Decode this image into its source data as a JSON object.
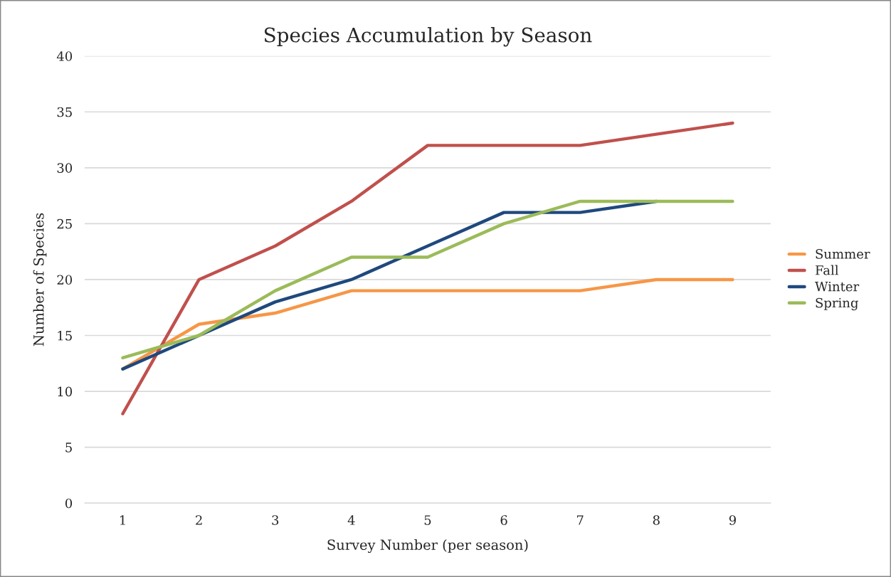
{
  "chart_data": {
    "type": "line",
    "title": "Species Accumulation by Season",
    "xlabel": "Survey Number (per season)",
    "ylabel": "Number of Species",
    "categories": [
      "1",
      "2",
      "3",
      "4",
      "5",
      "6",
      "7",
      "8",
      "9"
    ],
    "series": [
      {
        "name": "Summer",
        "color": "#f79646",
        "values": [
          12,
          16,
          17,
          19,
          19,
          19,
          19,
          20,
          20
        ]
      },
      {
        "name": "Fall",
        "color": "#c0504d",
        "values": [
          8,
          20,
          23,
          27,
          32,
          32,
          32,
          33,
          34
        ]
      },
      {
        "name": "Winter",
        "color": "#1f497d",
        "values": [
          12,
          15,
          18,
          20,
          23,
          26,
          26,
          27,
          null
        ]
      },
      {
        "name": "Spring",
        "color": "#9bbb59",
        "values": [
          13,
          15,
          19,
          22,
          22,
          25,
          27,
          27,
          27
        ]
      }
    ],
    "ylim": [
      0,
      40
    ],
    "yticks": [
      0,
      5,
      10,
      15,
      20,
      25,
      30,
      35,
      40
    ],
    "grid": "y",
    "legend": "right",
    "marker": "none",
    "line_style": "solid"
  }
}
